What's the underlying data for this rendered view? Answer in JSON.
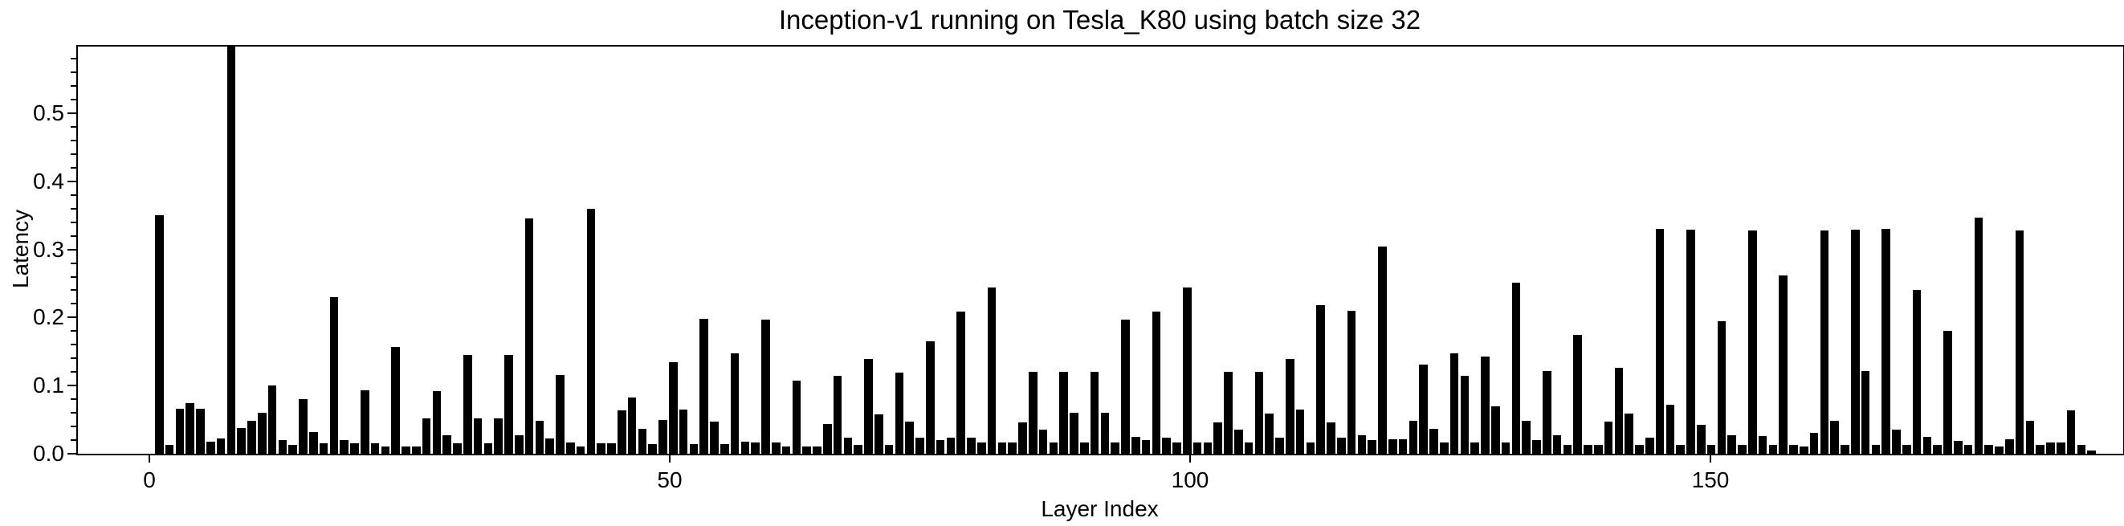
{
  "chart_data": {
    "type": "bar",
    "title": "Inception-v1 running on Tesla_K80 using batch size 32",
    "xlabel": "Layer Index",
    "ylabel": "Latency",
    "x_start_index": 1,
    "xticks": [
      0,
      50,
      100,
      150
    ],
    "yticks": [
      0.0,
      0.1,
      0.2,
      0.3,
      0.4,
      0.5
    ],
    "ylim": [
      0,
      0.6
    ],
    "grid": "horizontal dotted",
    "legend": "none",
    "bar_color": "#000000",
    "grid_color": "#9a9a9a",
    "background_color": "#ffffff",
    "values": [
      0.35,
      0.013,
      0.066,
      0.074,
      0.066,
      0.018,
      0.022,
      0.6,
      0.038,
      0.048,
      0.06,
      0.1,
      0.02,
      0.013,
      0.08,
      0.032,
      0.015,
      0.23,
      0.02,
      0.015,
      0.093,
      0.015,
      0.011,
      0.157,
      0.011,
      0.011,
      0.052,
      0.092,
      0.027,
      0.015,
      0.145,
      0.052,
      0.015,
      0.052,
      0.145,
      0.027,
      0.345,
      0.048,
      0.022,
      0.115,
      0.017,
      0.011,
      0.36,
      0.015,
      0.015,
      0.064,
      0.082,
      0.037,
      0.014,
      0.049,
      0.134,
      0.065,
      0.014,
      0.198,
      0.047,
      0.014,
      0.147,
      0.018,
      0.017,
      0.197,
      0.017,
      0.011,
      0.107,
      0.011,
      0.011,
      0.044,
      0.114,
      0.023,
      0.013,
      0.139,
      0.058,
      0.013,
      0.119,
      0.047,
      0.023,
      0.165,
      0.02,
      0.023,
      0.209,
      0.023,
      0.017,
      0.244,
      0.017,
      0.017,
      0.046,
      0.12,
      0.035,
      0.017,
      0.12,
      0.06,
      0.017,
      0.12,
      0.06,
      0.017,
      0.197,
      0.025,
      0.02,
      0.209,
      0.023,
      0.017,
      0.244,
      0.017,
      0.017,
      0.046,
      0.12,
      0.035,
      0.017,
      0.12,
      0.059,
      0.023,
      0.139,
      0.065,
      0.017,
      0.218,
      0.046,
      0.023,
      0.21,
      0.027,
      0.02,
      0.304,
      0.021,
      0.021,
      0.048,
      0.131,
      0.036,
      0.017,
      0.147,
      0.114,
      0.017,
      0.143,
      0.069,
      0.017,
      0.251,
      0.048,
      0.02,
      0.122,
      0.027,
      0.013,
      0.175,
      0.013,
      0.013,
      0.047,
      0.126,
      0.059,
      0.013,
      0.023,
      0.33,
      0.072,
      0.013,
      0.329,
      0.043,
      0.013,
      0.194,
      0.027,
      0.013,
      0.328,
      0.026,
      0.013,
      0.262,
      0.013,
      0.011,
      0.031,
      0.328,
      0.048,
      0.013,
      0.329,
      0.122,
      0.013,
      0.33,
      0.035,
      0.013,
      0.24,
      0.025,
      0.013,
      0.18,
      0.019,
      0.013,
      0.347,
      0.013,
      0.011,
      0.021,
      0.328,
      0.048,
      0.013,
      0.017,
      0.017,
      0.064,
      0.013,
      0.005
    ]
  }
}
